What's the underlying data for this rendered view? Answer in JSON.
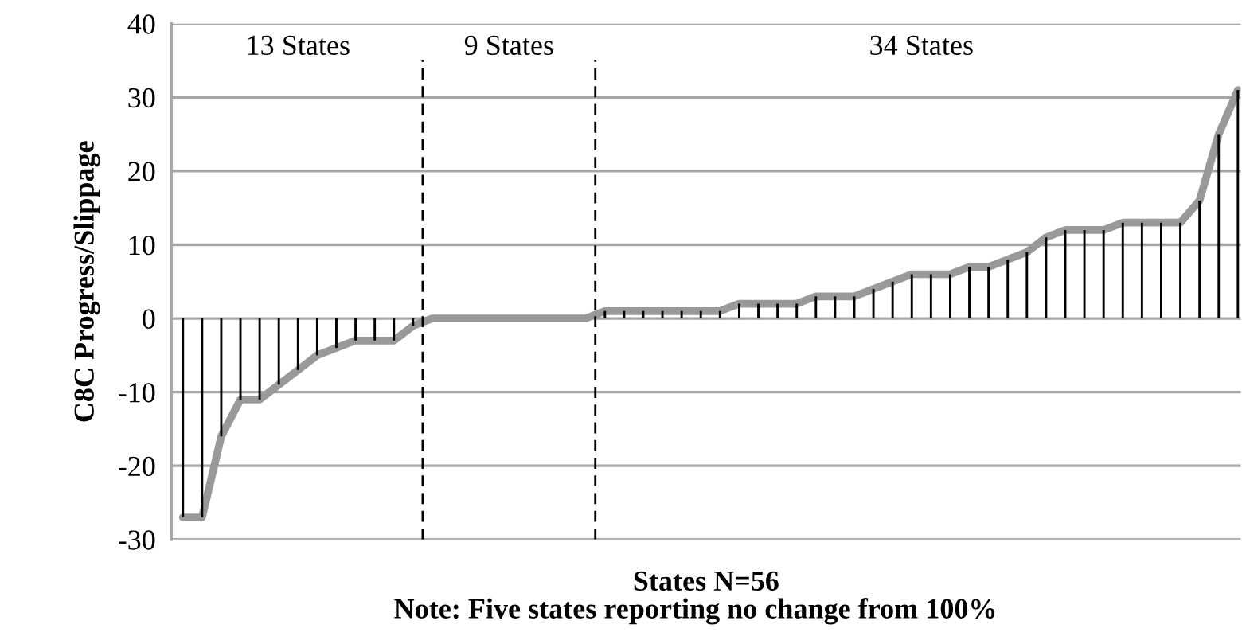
{
  "chart_data": {
    "type": "line",
    "categories": [
      null,
      null,
      null,
      null,
      null,
      null,
      null,
      null,
      null,
      null,
      null,
      null,
      null,
      null,
      null,
      null,
      null,
      null,
      null,
      null,
      null,
      null,
      null,
      null,
      null,
      null,
      null,
      null,
      null,
      null,
      null,
      null,
      null,
      null,
      null,
      null,
      null,
      null,
      null,
      null,
      null,
      null,
      null,
      null,
      null,
      null,
      null,
      null,
      null,
      null,
      null,
      null,
      null,
      null,
      null,
      null
    ],
    "series": [
      {
        "type": "bar",
        "color": "#000000",
        "values": [
          -27,
          -27,
          -16,
          -11,
          -11,
          -9,
          -7,
          -5,
          -4,
          -3,
          -3,
          -3,
          -1,
          0,
          0,
          0,
          0,
          0,
          0,
          0,
          0,
          0,
          1,
          1,
          1,
          1,
          1,
          1,
          1,
          2,
          2,
          2,
          2,
          3,
          3,
          3,
          4,
          5,
          6,
          6,
          6,
          7,
          7,
          8,
          9,
          11,
          12,
          12,
          12,
          13,
          13,
          13,
          13,
          16,
          25,
          31
        ]
      },
      {
        "color": "#999999",
        "values": [
          -27,
          -27,
          -16,
          -11,
          -11,
          -9,
          -7,
          -5,
          -4,
          -3,
          -3,
          -3,
          -1,
          0,
          0,
          0,
          0,
          0,
          0,
          0,
          0,
          0,
          1,
          1,
          1,
          1,
          1,
          1,
          1,
          2,
          2,
          2,
          2,
          3,
          3,
          3,
          4,
          5,
          6,
          6,
          6,
          7,
          7,
          8,
          9,
          11,
          12,
          12,
          12,
          13,
          13,
          13,
          13,
          16,
          25,
          31
        ]
      }
    ],
    "ylim": [
      -30,
      40
    ],
    "yticks": [
      -30,
      -20,
      -10,
      0,
      10,
      20,
      30,
      40
    ],
    "grid": "y",
    "marker": "none",
    "tick_labels": "y",
    "ylabel": "C8C Progress/Slippage",
    "xlabel": "States N=56",
    "annotations": [
      "13 States",
      "9 States",
      "34 States",
      "Note: Five states reporting no change from 100%"
    ]
  }
}
